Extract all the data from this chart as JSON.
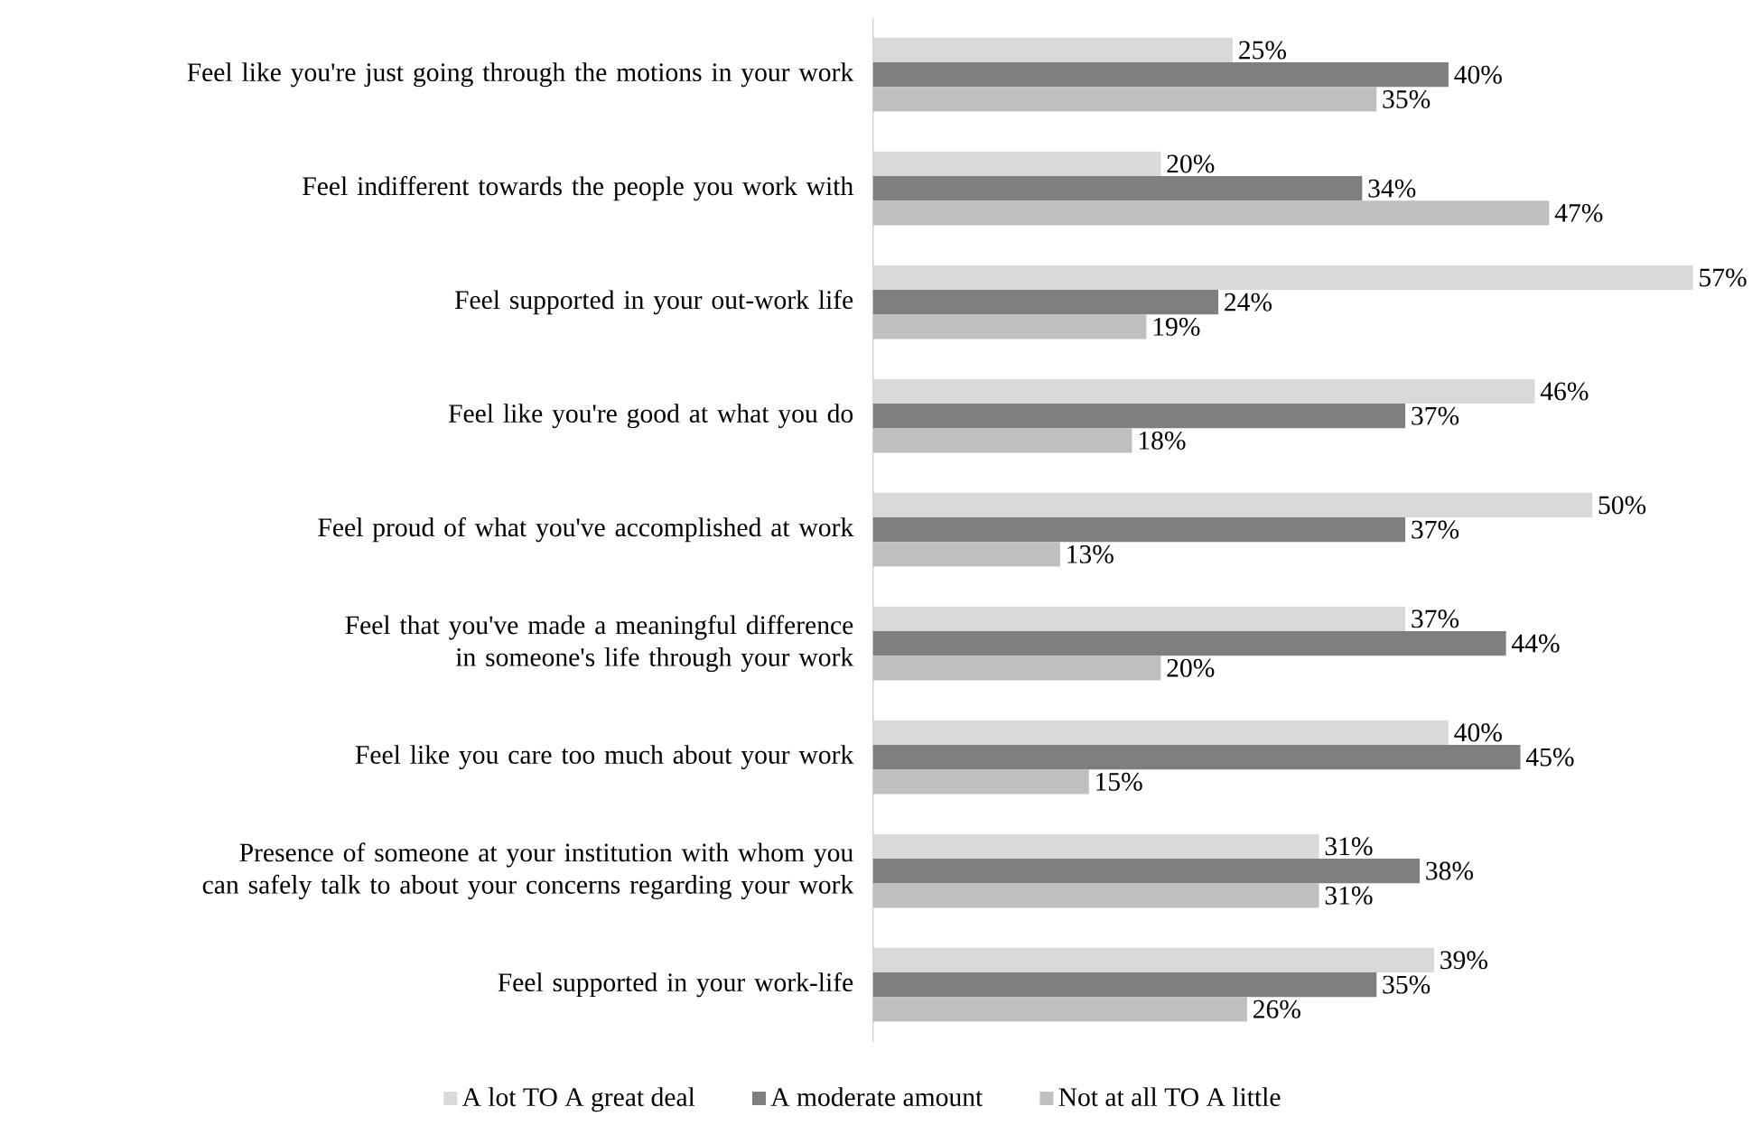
{
  "chart_data": {
    "type": "bar",
    "orientation": "horizontal",
    "categories": [
      "Feel like you're just going through the motions in your work",
      "Feel indifferent towards the people you work with",
      "Feel supported in your out-work life",
      "Feel like you're good at what you do",
      "Feel proud of what you've accomplished at work",
      "Feel that you've made a meaningful difference in someone's life through your work",
      "Feel like you care too much about your work",
      "Presence of someone at your institution with whom you can safely talk to about your concerns regarding your work",
      "Feel supported in your work-life"
    ],
    "series": [
      {
        "name": "A lot TO A great deal",
        "color": "#d9d9d9",
        "values": [
          25,
          20,
          57,
          46,
          50,
          37,
          40,
          31,
          39
        ],
        "value_labels": [
          "25%",
          "20%",
          "57%",
          "46%",
          "50%",
          "37%",
          "40%",
          "31%",
          "39%"
        ]
      },
      {
        "name": "A moderate amount",
        "color": "#7f7f7f",
        "values": [
          40,
          34,
          24,
          37,
          37,
          44,
          45,
          38,
          35
        ],
        "value_labels": [
          "40%",
          "34%",
          "24%",
          "37%",
          "37%",
          "44%",
          "45%",
          "38%",
          "35%"
        ]
      },
      {
        "name": "Not at all TO A little",
        "color": "#bfbfbf",
        "values": [
          35,
          47,
          19,
          18,
          13,
          20,
          15,
          31,
          26
        ],
        "value_labels": [
          "35%",
          "47%",
          "19%",
          "18%",
          "13%",
          "20%",
          "15%",
          "31%",
          "26%"
        ]
      }
    ],
    "legend": "bottom"
  }
}
